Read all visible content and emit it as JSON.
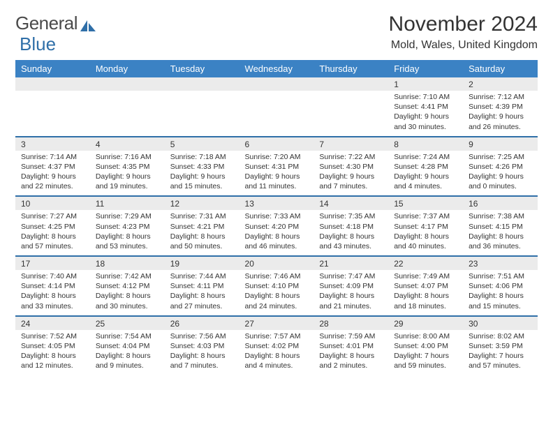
{
  "logo": {
    "word1": "General",
    "word2": "Blue"
  },
  "title": "November 2024",
  "location": "Mold, Wales, United Kingdom",
  "colors": {
    "header_bg": "#3b82c4",
    "header_text": "#ffffff",
    "daynum_bg": "#ebebeb",
    "row_divider": "#2f6fa8",
    "text": "#333333",
    "logo_gray": "#4a4a4a",
    "logo_blue": "#2f6fa8"
  },
  "typography": {
    "title_fontsize": 30,
    "location_fontsize": 16,
    "header_fontsize": 13,
    "daynum_fontsize": 12,
    "body_fontsize": 10.5
  },
  "day_headers": [
    "Sunday",
    "Monday",
    "Tuesday",
    "Wednesday",
    "Thursday",
    "Friday",
    "Saturday"
  ],
  "weeks": [
    [
      {
        "n": "",
        "sr": "",
        "ss": "",
        "dl": ""
      },
      {
        "n": "",
        "sr": "",
        "ss": "",
        "dl": ""
      },
      {
        "n": "",
        "sr": "",
        "ss": "",
        "dl": ""
      },
      {
        "n": "",
        "sr": "",
        "ss": "",
        "dl": ""
      },
      {
        "n": "",
        "sr": "",
        "ss": "",
        "dl": ""
      },
      {
        "n": "1",
        "sr": "Sunrise: 7:10 AM",
        "ss": "Sunset: 4:41 PM",
        "dl": "Daylight: 9 hours and 30 minutes."
      },
      {
        "n": "2",
        "sr": "Sunrise: 7:12 AM",
        "ss": "Sunset: 4:39 PM",
        "dl": "Daylight: 9 hours and 26 minutes."
      }
    ],
    [
      {
        "n": "3",
        "sr": "Sunrise: 7:14 AM",
        "ss": "Sunset: 4:37 PM",
        "dl": "Daylight: 9 hours and 22 minutes."
      },
      {
        "n": "4",
        "sr": "Sunrise: 7:16 AM",
        "ss": "Sunset: 4:35 PM",
        "dl": "Daylight: 9 hours and 19 minutes."
      },
      {
        "n": "5",
        "sr": "Sunrise: 7:18 AM",
        "ss": "Sunset: 4:33 PM",
        "dl": "Daylight: 9 hours and 15 minutes."
      },
      {
        "n": "6",
        "sr": "Sunrise: 7:20 AM",
        "ss": "Sunset: 4:31 PM",
        "dl": "Daylight: 9 hours and 11 minutes."
      },
      {
        "n": "7",
        "sr": "Sunrise: 7:22 AM",
        "ss": "Sunset: 4:30 PM",
        "dl": "Daylight: 9 hours and 7 minutes."
      },
      {
        "n": "8",
        "sr": "Sunrise: 7:24 AM",
        "ss": "Sunset: 4:28 PM",
        "dl": "Daylight: 9 hours and 4 minutes."
      },
      {
        "n": "9",
        "sr": "Sunrise: 7:25 AM",
        "ss": "Sunset: 4:26 PM",
        "dl": "Daylight: 9 hours and 0 minutes."
      }
    ],
    [
      {
        "n": "10",
        "sr": "Sunrise: 7:27 AM",
        "ss": "Sunset: 4:25 PM",
        "dl": "Daylight: 8 hours and 57 minutes."
      },
      {
        "n": "11",
        "sr": "Sunrise: 7:29 AM",
        "ss": "Sunset: 4:23 PM",
        "dl": "Daylight: 8 hours and 53 minutes."
      },
      {
        "n": "12",
        "sr": "Sunrise: 7:31 AM",
        "ss": "Sunset: 4:21 PM",
        "dl": "Daylight: 8 hours and 50 minutes."
      },
      {
        "n": "13",
        "sr": "Sunrise: 7:33 AM",
        "ss": "Sunset: 4:20 PM",
        "dl": "Daylight: 8 hours and 46 minutes."
      },
      {
        "n": "14",
        "sr": "Sunrise: 7:35 AM",
        "ss": "Sunset: 4:18 PM",
        "dl": "Daylight: 8 hours and 43 minutes."
      },
      {
        "n": "15",
        "sr": "Sunrise: 7:37 AM",
        "ss": "Sunset: 4:17 PM",
        "dl": "Daylight: 8 hours and 40 minutes."
      },
      {
        "n": "16",
        "sr": "Sunrise: 7:38 AM",
        "ss": "Sunset: 4:15 PM",
        "dl": "Daylight: 8 hours and 36 minutes."
      }
    ],
    [
      {
        "n": "17",
        "sr": "Sunrise: 7:40 AM",
        "ss": "Sunset: 4:14 PM",
        "dl": "Daylight: 8 hours and 33 minutes."
      },
      {
        "n": "18",
        "sr": "Sunrise: 7:42 AM",
        "ss": "Sunset: 4:12 PM",
        "dl": "Daylight: 8 hours and 30 minutes."
      },
      {
        "n": "19",
        "sr": "Sunrise: 7:44 AM",
        "ss": "Sunset: 4:11 PM",
        "dl": "Daylight: 8 hours and 27 minutes."
      },
      {
        "n": "20",
        "sr": "Sunrise: 7:46 AM",
        "ss": "Sunset: 4:10 PM",
        "dl": "Daylight: 8 hours and 24 minutes."
      },
      {
        "n": "21",
        "sr": "Sunrise: 7:47 AM",
        "ss": "Sunset: 4:09 PM",
        "dl": "Daylight: 8 hours and 21 minutes."
      },
      {
        "n": "22",
        "sr": "Sunrise: 7:49 AM",
        "ss": "Sunset: 4:07 PM",
        "dl": "Daylight: 8 hours and 18 minutes."
      },
      {
        "n": "23",
        "sr": "Sunrise: 7:51 AM",
        "ss": "Sunset: 4:06 PM",
        "dl": "Daylight: 8 hours and 15 minutes."
      }
    ],
    [
      {
        "n": "24",
        "sr": "Sunrise: 7:52 AM",
        "ss": "Sunset: 4:05 PM",
        "dl": "Daylight: 8 hours and 12 minutes."
      },
      {
        "n": "25",
        "sr": "Sunrise: 7:54 AM",
        "ss": "Sunset: 4:04 PM",
        "dl": "Daylight: 8 hours and 9 minutes."
      },
      {
        "n": "26",
        "sr": "Sunrise: 7:56 AM",
        "ss": "Sunset: 4:03 PM",
        "dl": "Daylight: 8 hours and 7 minutes."
      },
      {
        "n": "27",
        "sr": "Sunrise: 7:57 AM",
        "ss": "Sunset: 4:02 PM",
        "dl": "Daylight: 8 hours and 4 minutes."
      },
      {
        "n": "28",
        "sr": "Sunrise: 7:59 AM",
        "ss": "Sunset: 4:01 PM",
        "dl": "Daylight: 8 hours and 2 minutes."
      },
      {
        "n": "29",
        "sr": "Sunrise: 8:00 AM",
        "ss": "Sunset: 4:00 PM",
        "dl": "Daylight: 7 hours and 59 minutes."
      },
      {
        "n": "30",
        "sr": "Sunrise: 8:02 AM",
        "ss": "Sunset: 3:59 PM",
        "dl": "Daylight: 7 hours and 57 minutes."
      }
    ]
  ]
}
